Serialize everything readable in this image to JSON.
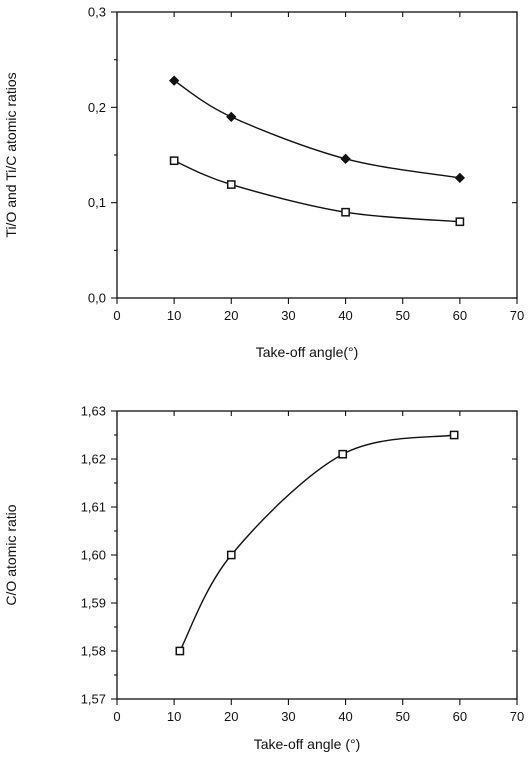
{
  "chart_data": [
    {
      "type": "line",
      "xlabel": "Take-off angle(°)",
      "ylabel": "Ti/O and Ti/C atomic ratios",
      "xlim": [
        0,
        70
      ],
      "ylim": [
        0.0,
        0.3
      ],
      "x_ticks": [
        0,
        10,
        20,
        30,
        40,
        50,
        60,
        70
      ],
      "y_ticks": [
        0.0,
        0.1,
        0.2,
        0.3
      ],
      "x_tick_labels": [
        "0",
        "10",
        "20",
        "30",
        "40",
        "50",
        "60",
        "70"
      ],
      "y_tick_labels": [
        "0,0",
        "0,1",
        "0,2",
        "0,3"
      ],
      "grid": false,
      "series": [
        {
          "marker": "diamond",
          "x": [
            10,
            20,
            40,
            60
          ],
          "y": [
            0.228,
            0.19,
            0.146,
            0.126
          ]
        },
        {
          "marker": "square",
          "x": [
            10,
            20,
            40,
            60
          ],
          "y": [
            0.144,
            0.119,
            0.09,
            0.08
          ]
        }
      ]
    },
    {
      "type": "line",
      "xlabel": "Take-off angle (°)",
      "ylabel": "C/O atomic ratio",
      "xlim": [
        0,
        70
      ],
      "ylim": [
        1.57,
        1.63
      ],
      "x_ticks": [
        0,
        10,
        20,
        30,
        40,
        50,
        60,
        70
      ],
      "y_ticks": [
        1.57,
        1.58,
        1.59,
        1.6,
        1.61,
        1.62,
        1.63
      ],
      "x_tick_labels": [
        "0",
        "10",
        "20",
        "30",
        "40",
        "50",
        "60",
        "70"
      ],
      "y_tick_labels": [
        "1,57",
        "1,58",
        "1,59",
        "1,60",
        "1,61",
        "1,62",
        "1,63"
      ],
      "grid": false,
      "series": [
        {
          "marker": "square",
          "x": [
            11,
            20,
            39.5,
            59
          ],
          "y": [
            1.58,
            1.6,
            1.621,
            1.625
          ]
        }
      ]
    }
  ]
}
